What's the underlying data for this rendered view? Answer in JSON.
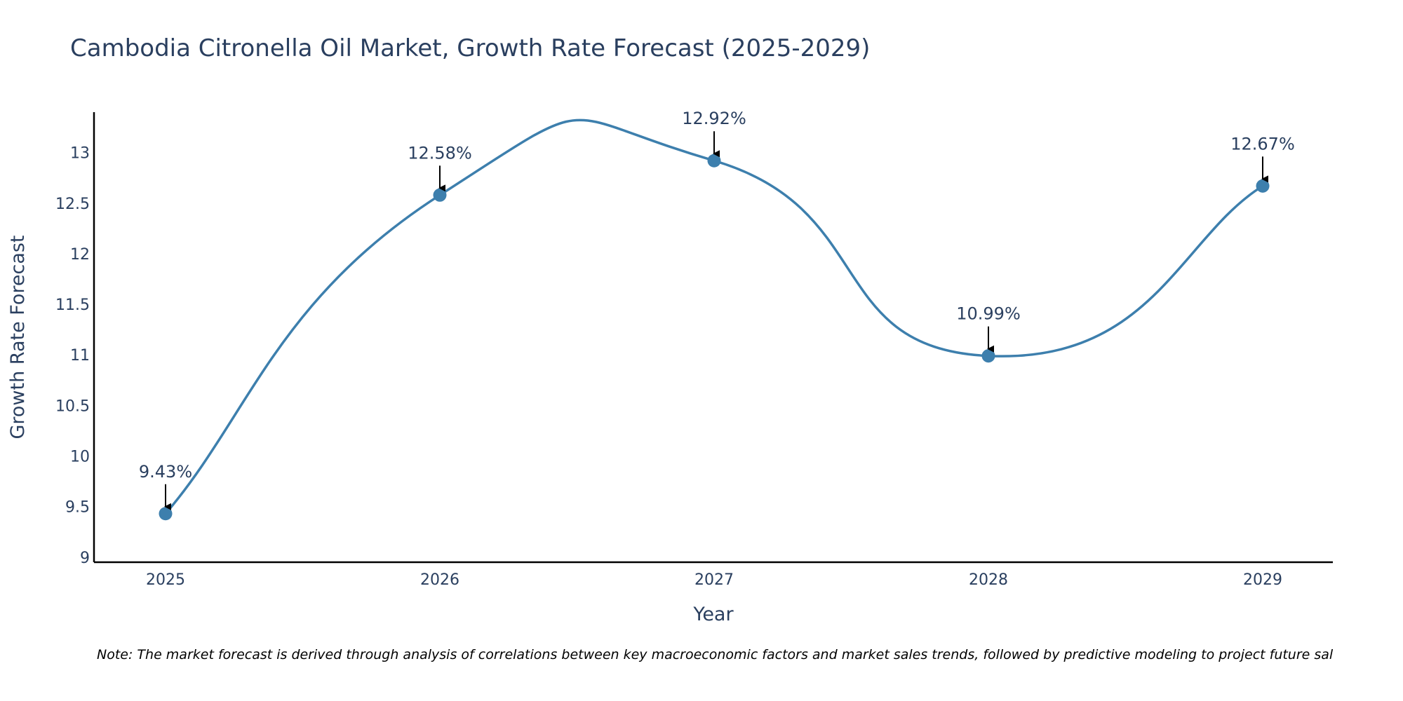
{
  "chart_data": {
    "type": "line",
    "title": "Cambodia Citronella Oil Market, Growth Rate Forecast (2025-2029)",
    "xlabel": "Year",
    "ylabel": "Growth Rate Forecast",
    "categories": [
      "2025",
      "2026",
      "2027",
      "2028",
      "2029"
    ],
    "values": [
      9.43,
      12.58,
      12.92,
      10.99,
      12.67
    ],
    "data_labels": [
      "9.43%",
      "12.58%",
      "12.92%",
      "10.99%",
      "12.67%"
    ],
    "ylim": [
      8.95,
      13.4
    ],
    "yticks": [
      9,
      9.5,
      10,
      10.5,
      11,
      11.5,
      12,
      12.5,
      13
    ],
    "ytick_labels": [
      "9",
      "9.5",
      "10",
      "10.5",
      "11",
      "11.5",
      "12",
      "12.5",
      "13"
    ],
    "line_color": "#3d7fad",
    "marker_color": "#3d7fad",
    "smooth": true,
    "grid": false,
    "note": "Note: The market forecast is derived through analysis of correlations between key macroeconomic factors and market sales trends, followed by predictive modeling to project future sal"
  }
}
